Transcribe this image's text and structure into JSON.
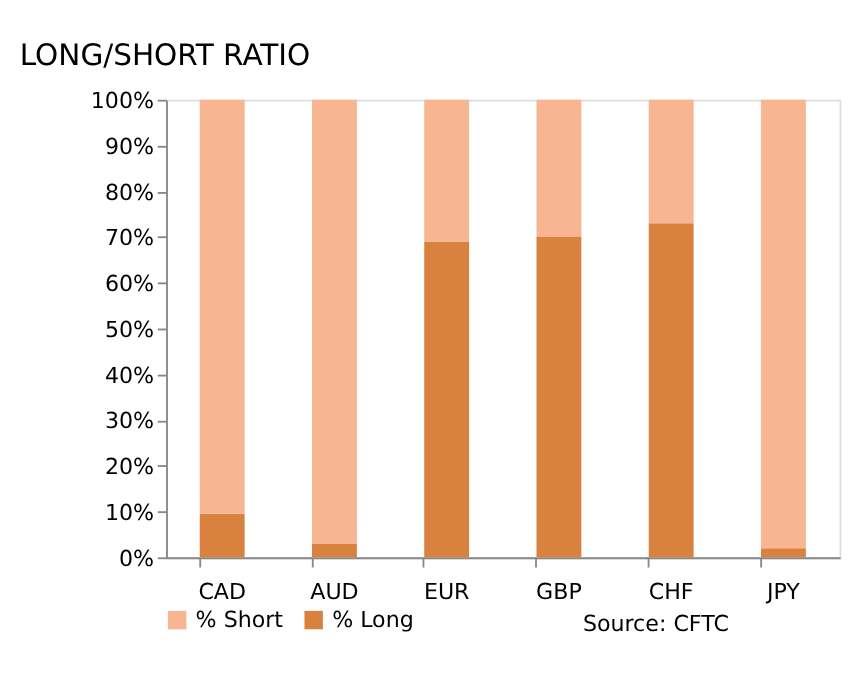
{
  "chart_data": {
    "type": "bar",
    "title": "LONG/SHORT RATIO",
    "stacked": true,
    "categories": [
      "CAD",
      "AUD",
      "EUR",
      "GBP",
      "CHF",
      "JPY"
    ],
    "series": [
      {
        "name": "% Long",
        "color": "#d9823f",
        "values": [
          9.5,
          3,
          69,
          70,
          73,
          2
        ]
      },
      {
        "name": "% Short",
        "color": "#f8b592",
        "values": [
          90.5,
          97,
          31,
          30,
          27,
          98
        ]
      }
    ],
    "ylim": [
      0,
      100
    ],
    "yticks": [
      {
        "value": 0,
        "label": "0%"
      },
      {
        "value": 10,
        "label": "10%"
      },
      {
        "value": 20,
        "label": "20%"
      },
      {
        "value": 30,
        "label": "30%"
      },
      {
        "value": 40,
        "label": "40%"
      },
      {
        "value": 50,
        "label": "50%"
      },
      {
        "value": 60,
        "label": "60%"
      },
      {
        "value": 70,
        "label": "70%"
      },
      {
        "value": 80,
        "label": "80%"
      },
      {
        "value": 90,
        "label": "90%"
      },
      {
        "value": 100,
        "label": "100%"
      }
    ],
    "grid": false,
    "legend": "bottom left",
    "annotations": [
      "Source: CFTC"
    ]
  }
}
